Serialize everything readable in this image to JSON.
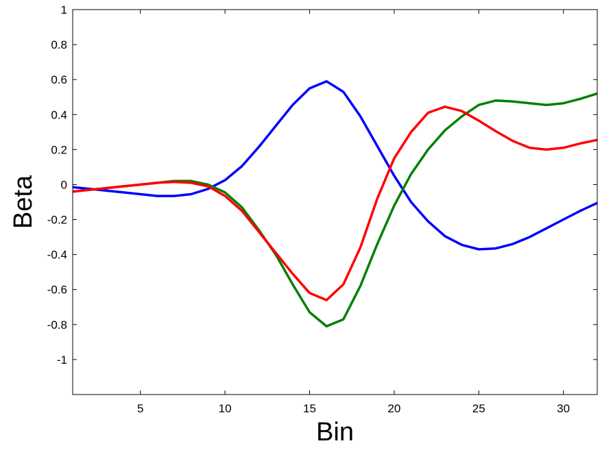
{
  "chart_data": {
    "type": "line",
    "xlabel": "Bin",
    "ylabel": "Beta",
    "xlim": [
      1,
      32
    ],
    "ylim": [
      -1.2,
      1
    ],
    "xticks": [
      5,
      10,
      15,
      20,
      25,
      30
    ],
    "yticks": [
      1,
      0.8,
      0.6,
      0.4,
      0.2,
      0,
      -0.2,
      -0.4,
      -0.6,
      -0.8,
      -1
    ],
    "grid": false,
    "legend": "none",
    "x": [
      1,
      2,
      3,
      4,
      5,
      6,
      7,
      8,
      9,
      10,
      11,
      12,
      13,
      14,
      15,
      16,
      17,
      18,
      19,
      20,
      21,
      22,
      23,
      24,
      25,
      26,
      27,
      28,
      29,
      30,
      31,
      32
    ],
    "series": [
      {
        "color": "#0000ff",
        "values": [
          -0.015,
          -0.025,
          -0.035,
          -0.045,
          -0.055,
          -0.065,
          -0.065,
          -0.055,
          -0.025,
          0.025,
          0.105,
          0.215,
          0.335,
          0.455,
          0.55,
          0.59,
          0.53,
          0.39,
          0.22,
          0.05,
          -0.1,
          -0.21,
          -0.295,
          -0.345,
          -0.37,
          -0.365,
          -0.34,
          -0.3,
          -0.25,
          -0.2,
          -0.15,
          -0.105
        ]
      },
      {
        "color": "#008000",
        "values": [
          -0.04,
          -0.03,
          -0.02,
          -0.01,
          0.0,
          0.01,
          0.02,
          0.02,
          0.0,
          -0.045,
          -0.13,
          -0.26,
          -0.4,
          -0.57,
          -0.73,
          -0.81,
          -0.77,
          -0.58,
          -0.34,
          -0.12,
          0.06,
          0.2,
          0.31,
          0.39,
          0.455,
          0.48,
          0.475,
          0.465,
          0.455,
          0.465,
          0.49,
          0.52
        ]
      },
      {
        "color": "#ff0000",
        "values": [
          -0.04,
          -0.03,
          -0.02,
          -0.01,
          0.0,
          0.01,
          0.015,
          0.01,
          -0.01,
          -0.065,
          -0.15,
          -0.27,
          -0.39,
          -0.51,
          -0.62,
          -0.66,
          -0.57,
          -0.36,
          -0.08,
          0.15,
          0.3,
          0.41,
          0.445,
          0.42,
          0.365,
          0.305,
          0.25,
          0.21,
          0.2,
          0.21,
          0.235,
          0.255
        ]
      }
    ]
  }
}
